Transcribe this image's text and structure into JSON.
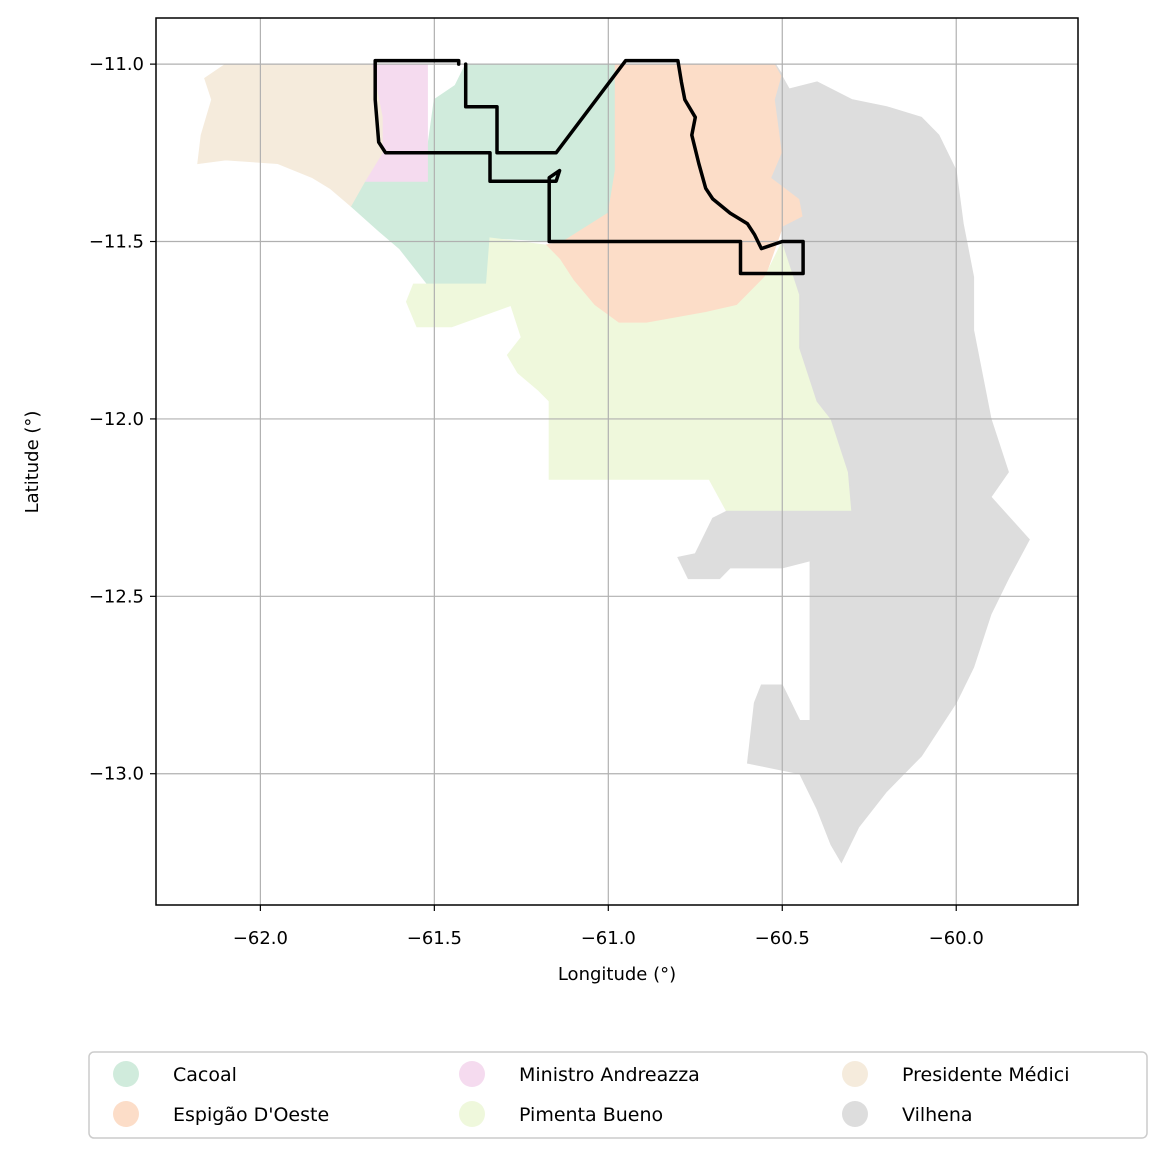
{
  "chart_data": {
    "type": "map",
    "xlabel": "Longitude (°)",
    "ylabel": "Latitude (°)",
    "xlim": [
      -62.3,
      -59.65
    ],
    "ylim": [
      -13.37,
      -10.87
    ],
    "xticks": [
      -62.0,
      -61.5,
      -61.0,
      -60.5,
      -60.0
    ],
    "yticks": [
      -11.0,
      -11.5,
      -12.0,
      -12.5,
      -13.0
    ],
    "xtick_labels": [
      "−62.0",
      "−61.5",
      "−61.0",
      "−60.5",
      "−60.0"
    ],
    "ytick_labels": [
      "−11.0",
      "−11.5",
      "−12.0",
      "−12.5",
      "−13.0"
    ],
    "grid": true,
    "legend_position": "bottom",
    "regions": [
      {
        "name": "Cacoal",
        "color": "#d0ebdc",
        "polygon": [
          [
            -61.41,
            -11.0
          ],
          [
            -60.98,
            -11.0
          ],
          [
            -60.98,
            -11.3
          ],
          [
            -61.0,
            -11.42
          ],
          [
            -61.13,
            -11.5
          ],
          [
            -61.34,
            -11.49
          ],
          [
            -61.35,
            -11.62
          ],
          [
            -61.52,
            -11.62
          ],
          [
            -61.6,
            -11.52
          ],
          [
            -61.66,
            -11.47
          ],
          [
            -61.74,
            -11.4
          ],
          [
            -61.73,
            -11.36
          ],
          [
            -61.7,
            -11.33
          ],
          [
            -61.65,
            -11.33
          ],
          [
            -61.52,
            -11.33
          ],
          [
            -61.52,
            -11.24
          ],
          [
            -61.5,
            -11.1
          ],
          [
            -61.44,
            -11.06
          ]
        ]
      },
      {
        "name": "Espigão D'Oeste",
        "color": "#fcddc8",
        "polygon": [
          [
            -60.98,
            -11.0
          ],
          [
            -60.52,
            -11.0
          ],
          [
            -60.5,
            -11.03
          ],
          [
            -60.52,
            -11.1
          ],
          [
            -60.5,
            -11.25
          ],
          [
            -60.53,
            -11.32
          ],
          [
            -60.45,
            -11.38
          ],
          [
            -60.44,
            -11.43
          ],
          [
            -60.5,
            -11.46
          ],
          [
            -60.55,
            -11.6
          ],
          [
            -60.63,
            -11.68
          ],
          [
            -60.72,
            -11.7
          ],
          [
            -60.89,
            -11.73
          ],
          [
            -60.93,
            -11.74
          ],
          [
            -60.97,
            -11.73
          ],
          [
            -61.04,
            -11.68
          ],
          [
            -61.1,
            -11.61
          ],
          [
            -61.14,
            -11.55
          ],
          [
            -61.18,
            -11.51
          ],
          [
            -61.13,
            -11.5
          ],
          [
            -61.0,
            -11.42
          ],
          [
            -60.98,
            -11.3
          ]
        ]
      },
      {
        "name": "Ministro Andreazza",
        "color": "#f5dbef",
        "polygon": [
          [
            -61.68,
            -11.0
          ],
          [
            -61.52,
            -11.0
          ],
          [
            -61.52,
            -11.25
          ],
          [
            -61.52,
            -11.33
          ],
          [
            -61.7,
            -11.33
          ],
          [
            -61.65,
            -11.25
          ],
          [
            -61.65,
            -11.15
          ],
          [
            -61.67,
            -11.05
          ]
        ]
      },
      {
        "name": "Pimenta Bueno",
        "color": "#eff8dc",
        "polygon": [
          [
            -61.34,
            -11.49
          ],
          [
            -61.18,
            -11.51
          ],
          [
            -61.14,
            -11.55
          ],
          [
            -61.1,
            -11.61
          ],
          [
            -61.04,
            -11.68
          ],
          [
            -60.97,
            -11.73
          ],
          [
            -60.89,
            -11.73
          ],
          [
            -60.72,
            -11.7
          ],
          [
            -60.63,
            -11.68
          ],
          [
            -60.55,
            -11.6
          ],
          [
            -60.5,
            -11.5
          ],
          [
            -60.45,
            -11.65
          ],
          [
            -60.45,
            -11.8
          ],
          [
            -60.4,
            -11.95
          ],
          [
            -60.36,
            -12.0
          ],
          [
            -60.31,
            -12.15
          ],
          [
            -60.3,
            -12.26
          ],
          [
            -60.55,
            -12.26
          ],
          [
            -60.66,
            -12.26
          ],
          [
            -60.71,
            -12.17
          ],
          [
            -61.17,
            -12.17
          ],
          [
            -61.17,
            -11.95
          ],
          [
            -61.2,
            -11.92
          ],
          [
            -61.26,
            -11.87
          ],
          [
            -61.29,
            -11.82
          ],
          [
            -61.25,
            -11.77
          ],
          [
            -61.28,
            -11.68
          ],
          [
            -61.45,
            -11.74
          ],
          [
            -61.55,
            -11.74
          ],
          [
            -61.58,
            -11.67
          ],
          [
            -61.56,
            -11.62
          ],
          [
            -61.35,
            -11.62
          ]
        ]
      },
      {
        "name": "Presidente Médici",
        "color": "#f5ebdc",
        "polygon": [
          [
            -62.1,
            -11.0
          ],
          [
            -61.68,
            -11.0
          ],
          [
            -61.67,
            -11.05
          ],
          [
            -61.65,
            -11.15
          ],
          [
            -61.65,
            -11.25
          ],
          [
            -61.7,
            -11.33
          ],
          [
            -61.74,
            -11.4
          ],
          [
            -61.8,
            -11.35
          ],
          [
            -61.85,
            -11.32
          ],
          [
            -61.95,
            -11.28
          ],
          [
            -62.1,
            -11.27
          ],
          [
            -62.18,
            -11.28
          ],
          [
            -62.17,
            -11.2
          ],
          [
            -62.14,
            -11.1
          ],
          [
            -62.16,
            -11.04
          ]
        ]
      },
      {
        "name": "Vilhena",
        "color": "#dddddd",
        "polygon": [
          [
            -60.52,
            -11.0
          ],
          [
            -60.48,
            -11.07
          ],
          [
            -60.4,
            -11.05
          ],
          [
            -60.3,
            -11.1
          ],
          [
            -60.2,
            -11.12
          ],
          [
            -60.1,
            -11.15
          ],
          [
            -60.05,
            -11.2
          ],
          [
            -60.0,
            -11.3
          ],
          [
            -59.98,
            -11.45
          ],
          [
            -59.95,
            -11.6
          ],
          [
            -59.95,
            -11.75
          ],
          [
            -59.9,
            -12.0
          ],
          [
            -59.85,
            -12.15
          ],
          [
            -59.9,
            -12.22
          ],
          [
            -59.79,
            -12.34
          ],
          [
            -59.85,
            -12.45
          ],
          [
            -59.9,
            -12.55
          ],
          [
            -59.95,
            -12.7
          ],
          [
            -60.0,
            -12.8
          ],
          [
            -60.1,
            -12.95
          ],
          [
            -60.2,
            -13.05
          ],
          [
            -60.28,
            -13.15
          ],
          [
            -60.33,
            -13.25
          ],
          [
            -60.36,
            -13.2
          ],
          [
            -60.4,
            -13.1
          ],
          [
            -60.45,
            -13.0
          ],
          [
            -60.55,
            -12.98
          ],
          [
            -60.6,
            -12.97
          ],
          [
            -60.58,
            -12.8
          ],
          [
            -60.56,
            -12.75
          ],
          [
            -60.5,
            -12.75
          ],
          [
            -60.45,
            -12.85
          ],
          [
            -60.42,
            -12.85
          ],
          [
            -60.42,
            -12.4
          ],
          [
            -60.5,
            -12.42
          ],
          [
            -60.65,
            -12.42
          ],
          [
            -60.68,
            -12.45
          ],
          [
            -60.77,
            -12.45
          ],
          [
            -60.8,
            -12.39
          ],
          [
            -60.75,
            -12.38
          ],
          [
            -60.7,
            -12.28
          ],
          [
            -60.66,
            -12.26
          ],
          [
            -60.55,
            -12.26
          ],
          [
            -60.3,
            -12.26
          ],
          [
            -60.31,
            -12.15
          ],
          [
            -60.36,
            -12.0
          ],
          [
            -60.4,
            -11.95
          ],
          [
            -60.45,
            -11.8
          ],
          [
            -60.45,
            -11.65
          ],
          [
            -60.5,
            -11.5
          ],
          [
            -60.5,
            -11.46
          ],
          [
            -60.44,
            -11.43
          ],
          [
            -60.45,
            -11.38
          ],
          [
            -60.53,
            -11.32
          ],
          [
            -60.5,
            -11.25
          ],
          [
            -60.52,
            -11.1
          ],
          [
            -60.5,
            -11.03
          ]
        ]
      }
    ],
    "outline": {
      "color": "#000000",
      "line": [
        [
          -61.41,
          -11.0
        ],
        [
          -61.41,
          -11.12
        ],
        [
          -61.32,
          -11.12
        ],
        [
          -61.32,
          -11.25
        ],
        [
          -61.15,
          -11.25
        ],
        [
          -60.95,
          -10.99
        ],
        [
          -60.8,
          -10.99
        ],
        [
          -60.79,
          -11.05
        ],
        [
          -60.78,
          -11.1
        ],
        [
          -60.75,
          -11.15
        ],
        [
          -60.76,
          -11.2
        ],
        [
          -60.74,
          -11.28
        ],
        [
          -60.72,
          -11.35
        ],
        [
          -60.7,
          -11.38
        ],
        [
          -60.65,
          -11.42
        ],
        [
          -60.6,
          -11.45
        ],
        [
          -60.58,
          -11.48
        ],
        [
          -60.56,
          -11.52
        ],
        [
          -60.5,
          -11.5
        ],
        [
          -60.44,
          -11.5
        ],
        [
          -60.44,
          -11.59
        ],
        [
          -60.62,
          -11.59
        ],
        [
          -60.62,
          -11.5
        ],
        [
          -61.17,
          -11.5
        ],
        [
          -61.17,
          -11.32
        ],
        [
          -61.14,
          -11.3
        ],
        [
          -61.15,
          -11.33
        ],
        [
          -61.34,
          -11.33
        ],
        [
          -61.34,
          -11.25
        ],
        [
          -61.64,
          -11.25
        ],
        [
          -61.66,
          -11.22
        ],
        [
          -61.67,
          -11.1
        ],
        [
          -61.67,
          -10.99
        ],
        [
          -61.43,
          -10.99
        ],
        [
          -61.43,
          -11.0
        ]
      ]
    },
    "legend": [
      "Cacoal",
      "Espigão D'Oeste",
      "Ministro Andreazza",
      "Pimenta Bueno",
      "Presidente Médici",
      "Vilhena"
    ]
  }
}
